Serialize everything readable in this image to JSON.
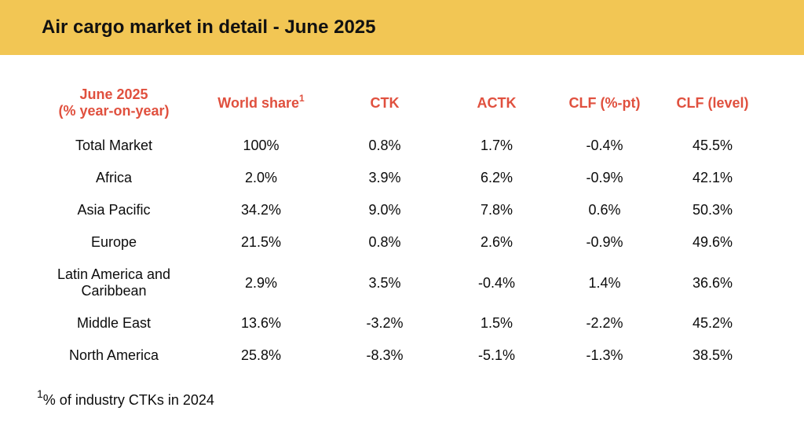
{
  "banner": {
    "title": "Air cargo market in detail - June 2025",
    "bg_color": "#F2C654",
    "title_color": "#111111"
  },
  "colors": {
    "header_red": "#E0503E",
    "body_text": "#0c0c0c",
    "background": "#ffffff"
  },
  "table": {
    "headers": {
      "region_line1": "June 2025",
      "region_line2": "(% year-on-year)",
      "world_share": "World share",
      "world_share_superscript": "1",
      "ctk": "CTK",
      "actk": "ACTK",
      "clf_pt": "CLF (%-pt)",
      "clf_level": "CLF (level)"
    },
    "rows": [
      {
        "region": "Total Market",
        "world_share": "100%",
        "ctk": "0.8%",
        "actk": "1.7%",
        "clf_pt": "-0.4%",
        "clf_level": "45.5%"
      },
      {
        "region": "Africa",
        "world_share": "2.0%",
        "ctk": "3.9%",
        "actk": "6.2%",
        "clf_pt": "-0.9%",
        "clf_level": "42.1%"
      },
      {
        "region": "Asia Pacific",
        "world_share": "34.2%",
        "ctk": "9.0%",
        "actk": "7.8%",
        "clf_pt": "0.6%",
        "clf_level": "50.3%"
      },
      {
        "region": "Europe",
        "world_share": "21.5%",
        "ctk": "0.8%",
        "actk": "2.6%",
        "clf_pt": "-0.9%",
        "clf_level": "49.6%"
      },
      {
        "region": "Latin America and Caribbean",
        "world_share": "2.9%",
        "ctk": "3.5%",
        "actk": "-0.4%",
        "clf_pt": "1.4%",
        "clf_level": "36.6%"
      },
      {
        "region": "Middle East",
        "world_share": "13.6%",
        "ctk": "-3.2%",
        "actk": "1.5%",
        "clf_pt": "-2.2%",
        "clf_level": "45.2%"
      },
      {
        "region": "North America",
        "world_share": "25.8%",
        "ctk": "-8.3%",
        "actk": "-5.1%",
        "clf_pt": "-1.3%",
        "clf_level": "38.5%"
      }
    ]
  },
  "footnote": {
    "superscript": "1",
    "text": "% of industry CTKs in 2024"
  }
}
